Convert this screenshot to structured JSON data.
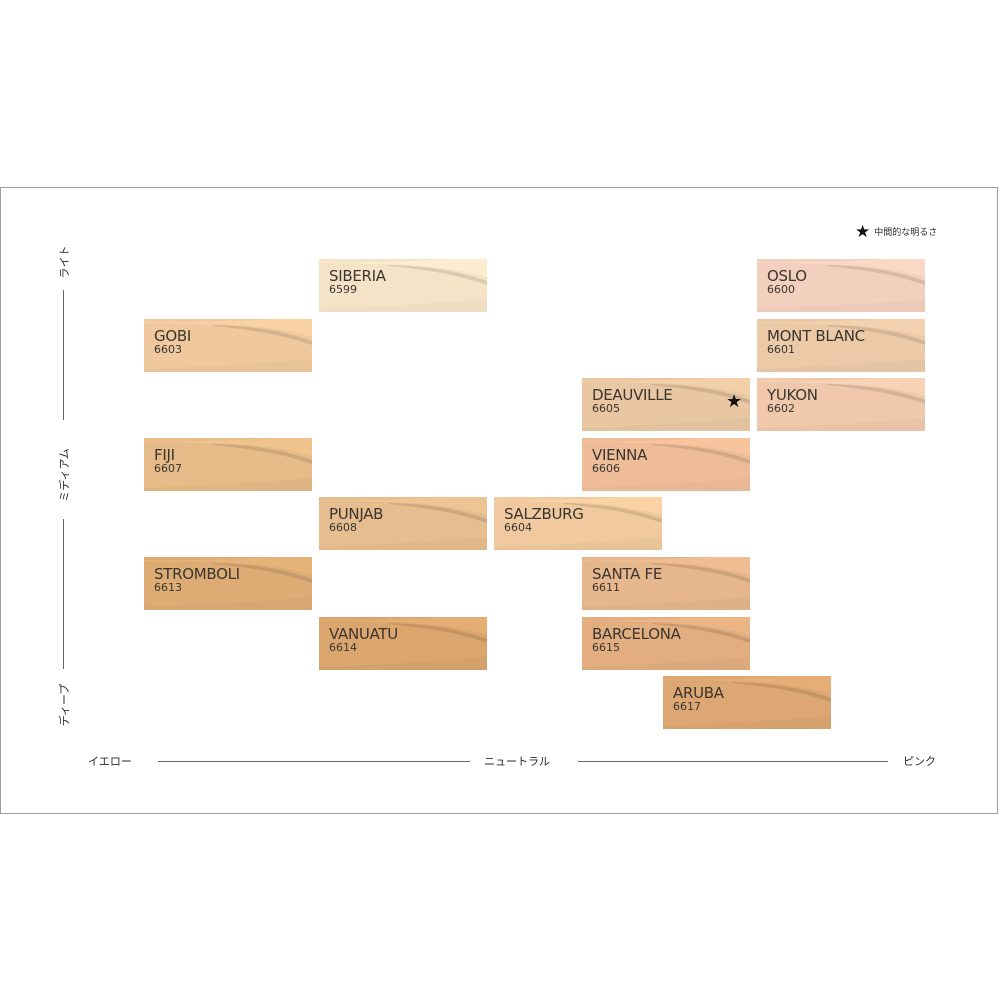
{
  "chart_data": {
    "type": "table",
    "title": "",
    "x_axis": {
      "left": "イエロー",
      "center": "ニュートラル",
      "right": "ピンク"
    },
    "y_axis": {
      "top": "ライト",
      "middle": "ミディアム",
      "bottom": "ディープ"
    },
    "legend": {
      "symbol": "★",
      "label": "中間的な明るさ"
    },
    "columns": 5,
    "rows": 8,
    "shades": [
      {
        "name": "SIBERIA",
        "code": "6599",
        "col": 1,
        "row": 0,
        "color": "#f5e3c8",
        "star": false
      },
      {
        "name": "OSLO",
        "code": "6600",
        "col": 4,
        "row": 0,
        "color": "#f2d0bd",
        "star": false
      },
      {
        "name": "GOBI",
        "code": "6603",
        "col": 0,
        "row": 1,
        "color": "#efc99d",
        "star": false
      },
      {
        "name": "MONT BLANC",
        "code": "6601",
        "col": 4,
        "row": 1,
        "color": "#eccaa8",
        "star": false
      },
      {
        "name": "DEAUVILLE",
        "code": "6605",
        "col": 3,
        "row": 2,
        "color": "#e9c7a3",
        "star": true
      },
      {
        "name": "YUKON",
        "code": "6602",
        "col": 4,
        "row": 2,
        "color": "#f0c9ad",
        "star": false
      },
      {
        "name": "FIJI",
        "code": "6607",
        "col": 0,
        "row": 3,
        "color": "#e6bb88",
        "star": false
      },
      {
        "name": "VIENNA",
        "code": "6606",
        "col": 3,
        "row": 3,
        "color": "#eebd98",
        "star": false
      },
      {
        "name": "PUNJAB",
        "code": "6608",
        "col": 1,
        "row": 4,
        "color": "#e5bd8e",
        "star": false
      },
      {
        "name": "SALZBURG",
        "code": "6604",
        "col": 2,
        "row": 4,
        "color": "#f0ca9e",
        "star": false
      },
      {
        "name": "STROMBOLI",
        "code": "6613",
        "col": 0,
        "row": 5,
        "color": "#ddac75",
        "star": false
      },
      {
        "name": "SANTA FE",
        "code": "6611",
        "col": 3,
        "row": 5,
        "color": "#e6b68c",
        "star": false
      },
      {
        "name": "VANUATU",
        "code": "6614",
        "col": 1,
        "row": 6,
        "color": "#dba66e",
        "star": false
      },
      {
        "name": "BARCELONA",
        "code": "6615",
        "col": 3,
        "row": 6,
        "color": "#e2ae80",
        "star": false
      },
      {
        "name": "ARUBA",
        "code": "6617",
        "col": 3.5,
        "row": 7,
        "color": "#dca772",
        "star": false
      }
    ]
  }
}
